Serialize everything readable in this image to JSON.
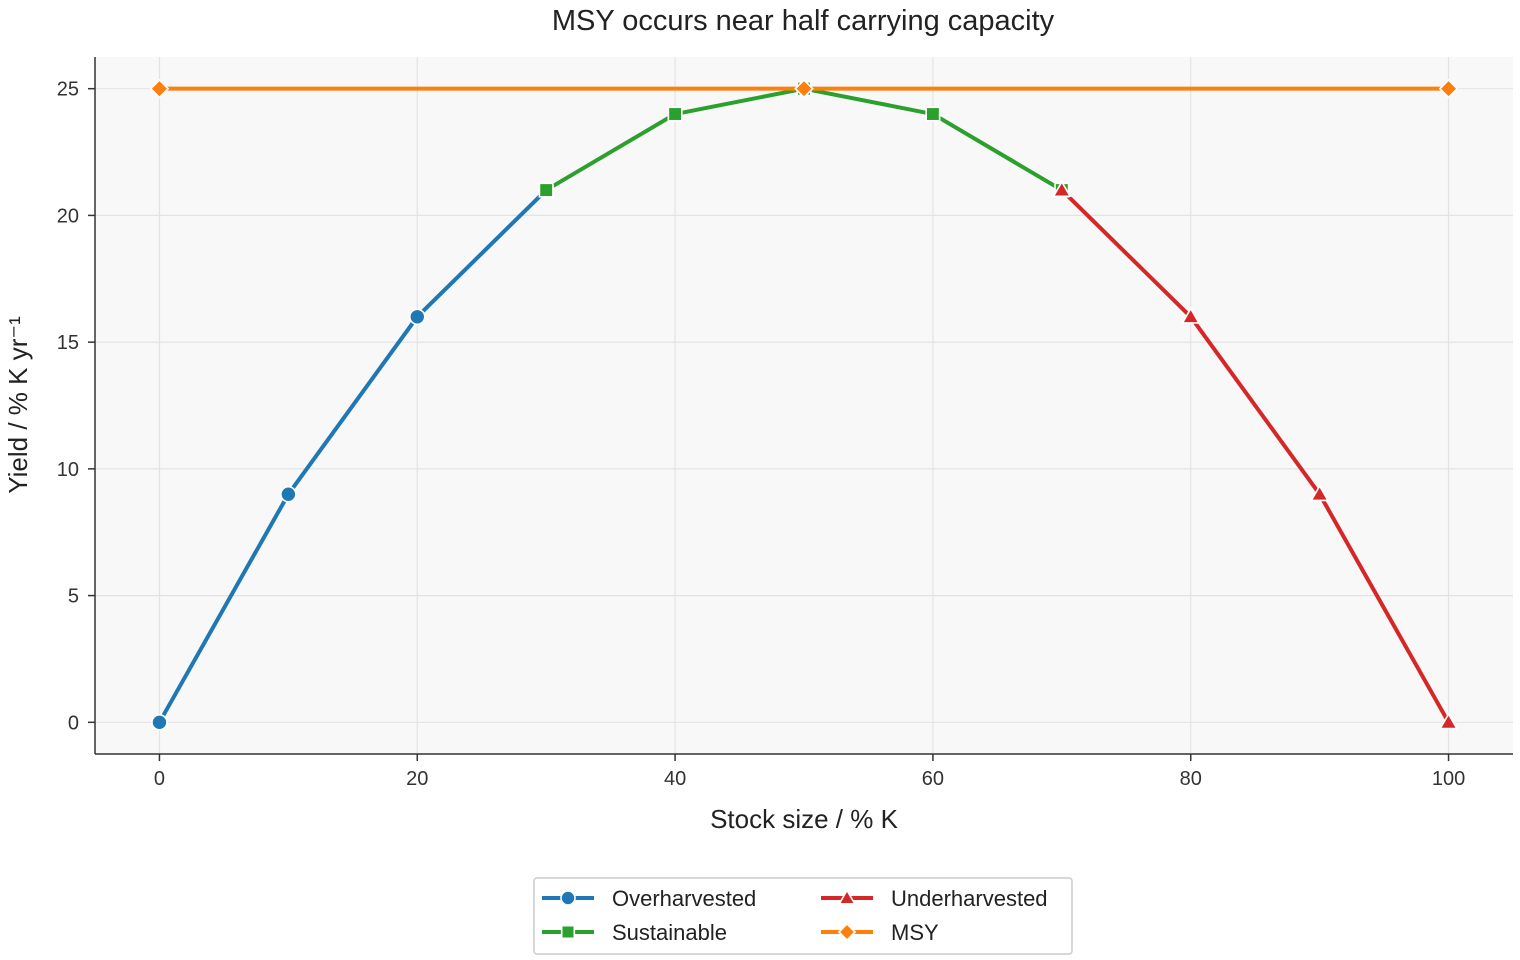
{
  "chart_data": {
    "type": "line",
    "title": "MSY occurs near half carrying capacity",
    "xlabel": "Stock size / % K",
    "ylabel": "Yield / % K yr⁻¹",
    "xlim": [
      -5,
      105
    ],
    "ylim": [
      -1.25,
      26.25
    ],
    "x_ticks": [
      0,
      20,
      40,
      60,
      80,
      100
    ],
    "y_ticks": [
      0,
      5,
      10,
      15,
      20,
      25
    ],
    "grid": true,
    "legend_position": "bottom-center",
    "series": [
      {
        "name": "Overharvested",
        "color": "#1f77b4",
        "marker": "circle",
        "x": [
          0,
          10,
          20,
          30
        ],
        "y": [
          0,
          9,
          16,
          21
        ]
      },
      {
        "name": "Sustainable",
        "color": "#2ca02c",
        "marker": "square",
        "x": [
          30,
          40,
          50,
          60,
          70
        ],
        "y": [
          21,
          24,
          25,
          24,
          21
        ]
      },
      {
        "name": "Underharvested",
        "color": "#d62728",
        "marker": "triangle",
        "x": [
          70,
          80,
          90,
          100
        ],
        "y": [
          21,
          16,
          9,
          0
        ]
      },
      {
        "name": "MSY",
        "color": "#ff7f0e",
        "marker": "diamond",
        "x": [
          0,
          50,
          100
        ],
        "y": [
          25,
          25,
          25
        ]
      }
    ]
  }
}
